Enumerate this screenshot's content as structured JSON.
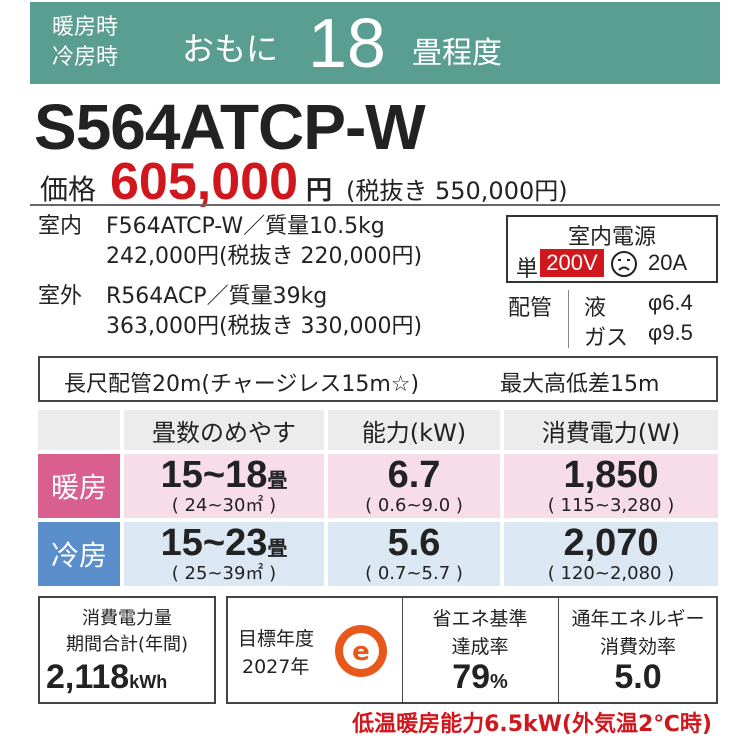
{
  "banner": {
    "heating_label": "暖房時",
    "cooling_label": "冷房時",
    "mainly": "おもに",
    "size_number": "18",
    "size_unit": "畳程度",
    "color": "#5a9e92"
  },
  "model": "S564ATCP-W",
  "price": {
    "label": "価格",
    "amount": "605,000",
    "yen": "円",
    "excl_tax": "(税抜き 550,000円)",
    "accent_color": "#d1171e"
  },
  "indoor": {
    "label": "室内",
    "model_weight": "F564ATCP-W／質量10.5kg",
    "price": "242,000円(税抜き 220,000円)"
  },
  "outdoor": {
    "label": "室外",
    "model_weight": "R564ACP／質量39kg",
    "price": "363,000円(税抜き 330,000円)"
  },
  "power": {
    "title": "室内電源",
    "phase": "単",
    "voltage": "200V",
    "plug_icon": "plug-face-icon",
    "amperage": "20A"
  },
  "piping": {
    "label": "配管",
    "liquid_label": "液",
    "liquid_value": "φ6.4",
    "gas_label": "ガス",
    "gas_value": "φ9.5"
  },
  "long_piping": {
    "text": "長尺配管20m(チャージレス15m☆)",
    "height_diff": "最大高低差15m"
  },
  "table": {
    "headers": [
      "畳数のめやす",
      "能力(kW)",
      "消費電力(W)"
    ],
    "rows": [
      {
        "label": "暖房",
        "tatami": "15~18",
        "tatami_unit": "畳",
        "tatami_range": "( 24~30㎡ )",
        "capacity": "6.7",
        "capacity_range": "( 0.6~9.0 )",
        "power": "1,850",
        "power_range": "( 115~3,280 )",
        "color": "#d95f8f"
      },
      {
        "label": "冷房",
        "tatami": "15~23",
        "tatami_unit": "畳",
        "tatami_range": "( 25~39㎡ )",
        "capacity": "5.6",
        "capacity_range": "( 0.7~5.7 )",
        "power": "2,070",
        "power_range": "( 120~2,080 )",
        "color": "#5b8fcb"
      }
    ]
  },
  "annual_power": {
    "line1": "消費電力量",
    "line2": "期間合計(年間)",
    "value": "2,118",
    "unit": "kWh"
  },
  "target_year": {
    "line1": "目標年度",
    "line2": "2027年",
    "icon": "e-mark-icon",
    "icon_letter": "e",
    "icon_color": "#e8581b"
  },
  "achievement": {
    "line1": "省エネ基準",
    "line2": "達成率",
    "value": "79",
    "unit": "%"
  },
  "apf": {
    "line1": "通年エネルギー",
    "line2": "消費効率",
    "value": "5.0"
  },
  "low_temp_note": "低温暖房能力6.5kW(外気温2℃時)"
}
